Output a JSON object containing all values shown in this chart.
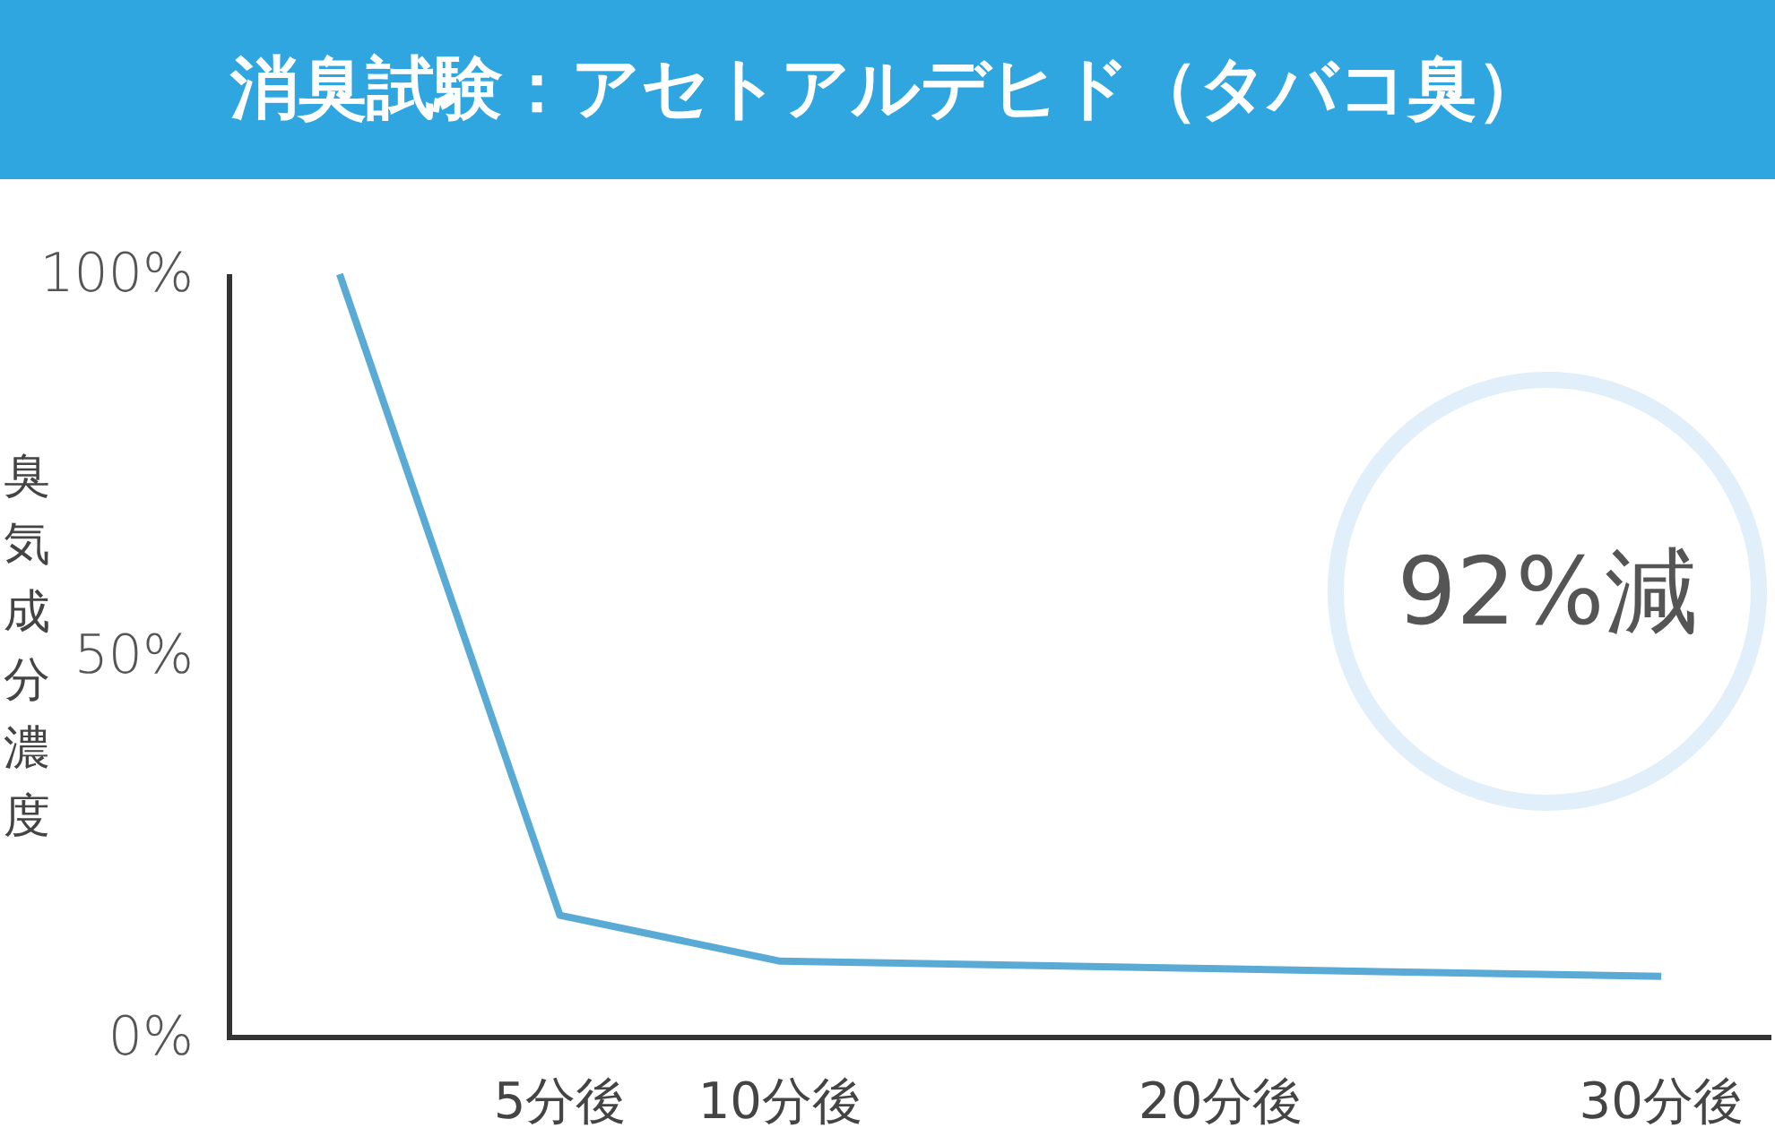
{
  "chart_data": {
    "type": "line",
    "title": "消臭試験：アセトアルデヒド（タバコ臭）",
    "ylabel": "臭気成分濃度",
    "x": [
      0,
      5,
      10,
      20,
      30
    ],
    "series": [
      {
        "color": "#5aaad6",
        "values": [
          100,
          16,
          10,
          9,
          8
        ]
      }
    ],
    "xlim": [
      -2.5,
      32.5
    ],
    "xticks": [
      {
        "value": 5,
        "label": "5分後"
      },
      {
        "value": 10,
        "label": "10分後"
      },
      {
        "value": 20,
        "label": "20分後"
      },
      {
        "value": 30,
        "label": "30分後"
      }
    ],
    "ylim": [
      0,
      100
    ],
    "yticks": [
      {
        "value": 0,
        "label": "0%"
      },
      {
        "value": 50,
        "label": "50%"
      },
      {
        "value": 100,
        "label": "100%"
      }
    ],
    "annotations": [
      "92%減"
    ],
    "marker": "none",
    "line_style": "solid"
  }
}
